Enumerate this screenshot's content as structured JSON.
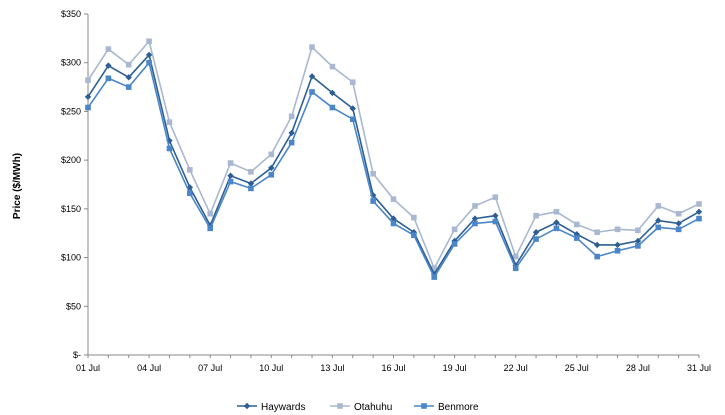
{
  "chart_data": {
    "type": "line",
    "title": "",
    "xlabel": "",
    "ylabel": "Price ($/MWh)",
    "ylim": [
      0,
      350
    ],
    "yticks": [
      0,
      50,
      100,
      150,
      200,
      250,
      300,
      350
    ],
    "ytick_labels": [
      "$-",
      "$50",
      "$100",
      "$150",
      "$200",
      "$250",
      "$300",
      "$350"
    ],
    "x": [
      1,
      2,
      3,
      4,
      5,
      6,
      7,
      8,
      9,
      10,
      11,
      12,
      13,
      14,
      15,
      16,
      17,
      18,
      19,
      20,
      21,
      22,
      23,
      24,
      25,
      26,
      27,
      28,
      29,
      30,
      31
    ],
    "xticks": [
      1,
      4,
      7,
      10,
      13,
      16,
      19,
      22,
      25,
      28,
      31
    ],
    "xtick_labels": [
      "01 Jul",
      "04 Jul",
      "07 Jul",
      "10 Jul",
      "13 Jul",
      "16 Jul",
      "19 Jul",
      "22 Jul",
      "25 Jul",
      "28 Jul",
      "31 Jul"
    ],
    "grid": false,
    "legend_position": "bottom",
    "series": [
      {
        "name": "Haywards",
        "color": "#2e5f94",
        "marker": "diamond",
        "values": [
          265,
          297,
          285,
          308,
          220,
          172,
          133,
          184,
          176,
          192,
          228,
          286,
          269,
          253,
          164,
          140,
          126,
          83,
          117,
          140,
          143,
          92,
          126,
          136,
          124,
          113,
          113,
          117,
          138,
          135,
          147
        ]
      },
      {
        "name": "Otahuhu",
        "color": "#a9b8d0",
        "marker": "square",
        "values": [
          282,
          314,
          298,
          322,
          239,
          190,
          145,
          197,
          188,
          206,
          245,
          316,
          296,
          280,
          186,
          160,
          141,
          89,
          129,
          153,
          162,
          101,
          143,
          147,
          134,
          126,
          129,
          128,
          153,
          145,
          155
        ]
      },
      {
        "name": "Benmore",
        "color": "#4a86c8",
        "marker": "square",
        "values": [
          254,
          284,
          275,
          300,
          212,
          166,
          130,
          178,
          171,
          185,
          218,
          270,
          254,
          242,
          158,
          135,
          123,
          80,
          114,
          135,
          137,
          89,
          119,
          130,
          120,
          101,
          107,
          112,
          131,
          129,
          140
        ]
      }
    ]
  }
}
